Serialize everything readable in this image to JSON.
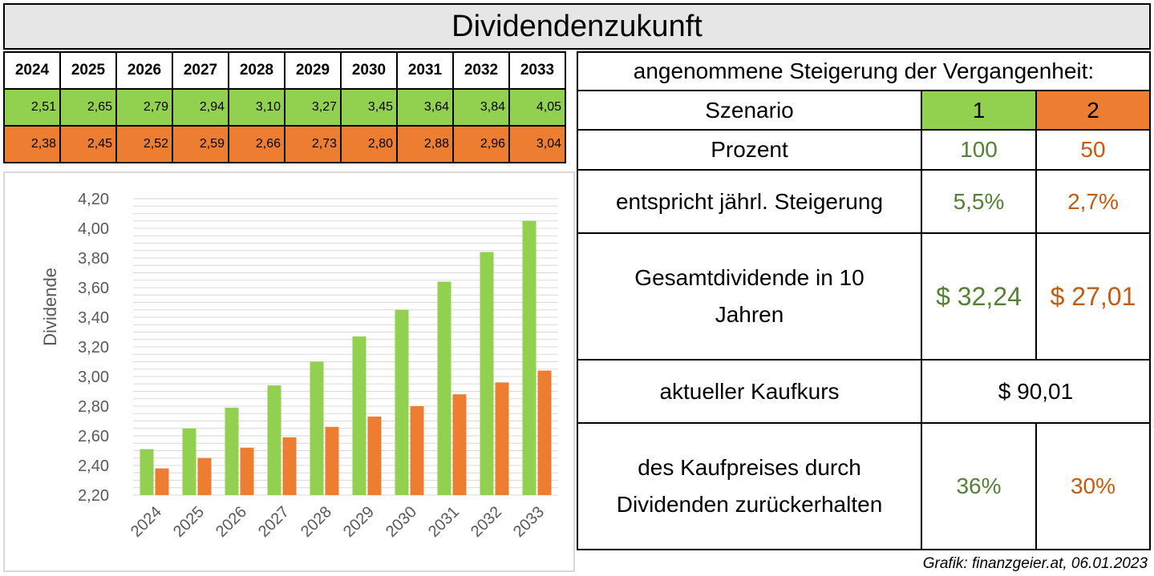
{
  "title": "Dividendenzukunft",
  "years_table": {
    "years": [
      "2024",
      "2025",
      "2026",
      "2027",
      "2028",
      "2029",
      "2030",
      "2031",
      "2032",
      "2033"
    ],
    "scenario1": [
      "2,51",
      "2,65",
      "2,79",
      "2,94",
      "3,10",
      "3,27",
      "3,45",
      "3,64",
      "3,84",
      "4,05"
    ],
    "scenario2": [
      "2,38",
      "2,45",
      "2,52",
      "2,59",
      "2,66",
      "2,73",
      "2,80",
      "2,88",
      "2,96",
      "3,04"
    ]
  },
  "info": {
    "heading": "angenommene Steigerung der Vergangenheit:",
    "szenario_label": "Szenario",
    "szenario_1": "1",
    "szenario_2": "2",
    "prozent_label": "Prozent",
    "prozent_1": "100",
    "prozent_2": "50",
    "steigerung_label": "entspricht jährl. Steigerung",
    "steigerung_1": "5,5%",
    "steigerung_2": "2,7%",
    "gesamt_label_line1": "Gesamtdividende in 10",
    "gesamt_label_line2": "Jahren",
    "gesamt_1": "$ 32,24",
    "gesamt_2": "$ 27,01",
    "kaufkurs_label": "aktueller Kaufkurs",
    "kaufkurs_value": "$ 90,01",
    "zurueck_label_line1": "des Kaufpreises durch",
    "zurueck_label_line2": "Dividenden zurückerhalten",
    "zurueck_1": "36%",
    "zurueck_2": "30%"
  },
  "credit": "Grafik: finanzgeier.at, 06.01.2023",
  "colors": {
    "scenario1": "#92d050",
    "scenario2": "#ed7d31",
    "green_text": "#548235",
    "orange_text": "#c55a11"
  },
  "chart_data": {
    "type": "bar",
    "categories": [
      "2024",
      "2025",
      "2026",
      "2027",
      "2028",
      "2029",
      "2030",
      "2031",
      "2032",
      "2033"
    ],
    "series": [
      {
        "values": [
          2.51,
          2.65,
          2.79,
          2.94,
          3.1,
          3.27,
          3.45,
          3.64,
          3.84,
          4.05
        ],
        "color": "#92d050"
      },
      {
        "values": [
          2.38,
          2.45,
          2.52,
          2.59,
          2.66,
          2.73,
          2.8,
          2.88,
          2.96,
          3.04
        ],
        "color": "#ed7d31"
      }
    ],
    "ylabel": "Dividende",
    "ylim": [
      2.2,
      4.2
    ],
    "yticks": [
      "2,20",
      "2,40",
      "2,60",
      "2,80",
      "3,00",
      "3,20",
      "3,40",
      "3,60",
      "3,80",
      "4,00",
      "4,20"
    ],
    "grid": true
  }
}
